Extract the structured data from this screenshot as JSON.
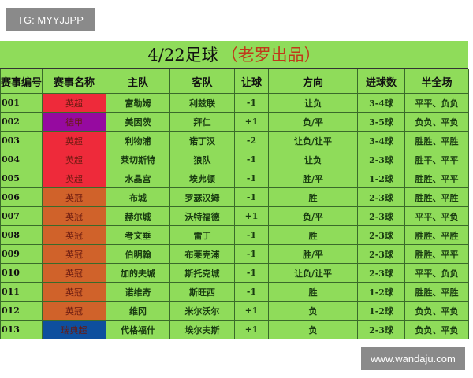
{
  "watermarks": {
    "top_left": "TG: MYYJJPP",
    "bottom_right": "www.wandaju.com"
  },
  "title": {
    "main": "4/22足球",
    "sub": "（老罗出品）"
  },
  "headers": [
    "赛事编号",
    "赛事名称",
    "主队",
    "客队",
    "让球",
    "方向",
    "进球数",
    "半全场"
  ],
  "league_colors": {
    "英超": "#ee2a3a",
    "德甲": "#960aa0",
    "英冠": "#d0622a",
    "瑞典超": "#0e4f9e"
  },
  "rows": [
    [
      "001",
      "英超",
      "富勒姆",
      "利兹联",
      "-1",
      "让负",
      "3-4球",
      "平平、负负"
    ],
    [
      "002",
      "德甲",
      "美因茨",
      "拜仁",
      "+1",
      "负/平",
      "3-5球",
      "负负、平负"
    ],
    [
      "003",
      "英超",
      "利物浦",
      "诺丁汉",
      "-2",
      "让负/让平",
      "3-4球",
      "胜胜、平胜"
    ],
    [
      "004",
      "英超",
      "莱切斯特",
      "狼队",
      "-1",
      "让负",
      "2-3球",
      "胜平、平平"
    ],
    [
      "005",
      "英超",
      "水晶宫",
      "埃弗顿",
      "-1",
      "胜/平",
      "1-2球",
      "胜胜、平平"
    ],
    [
      "006",
      "英冠",
      "布城",
      "罗瑟汉姆",
      "-1",
      "胜",
      "2-3球",
      "胜胜、平胜"
    ],
    [
      "007",
      "英冠",
      "赫尔城",
      "沃特福德",
      "+1",
      "负/平",
      "2-3球",
      "平平、平负"
    ],
    [
      "008",
      "英冠",
      "考文垂",
      "雷丁",
      "-1",
      "胜",
      "2-3球",
      "胜胜、平胜"
    ],
    [
      "009",
      "英冠",
      "伯明翰",
      "布莱克浦",
      "-1",
      "胜/平",
      "2-3球",
      "胜胜、平平"
    ],
    [
      "010",
      "英冠",
      "加的夫城",
      "斯托克城",
      "-1",
      "让负/让平",
      "2-3球",
      "平平、负负"
    ],
    [
      "011",
      "英冠",
      "诺维奇",
      "斯旺西",
      "-1",
      "胜",
      "1-2球",
      "胜胜、平胜"
    ],
    [
      "012",
      "英冠",
      "维冈",
      "米尔沃尔",
      "+1",
      "负",
      "1-2球",
      "负负、平负"
    ],
    [
      "013",
      "瑞典超",
      "代格福什",
      "埃尔夫斯",
      "+1",
      "负",
      "2-3球",
      "负负、平负"
    ]
  ]
}
